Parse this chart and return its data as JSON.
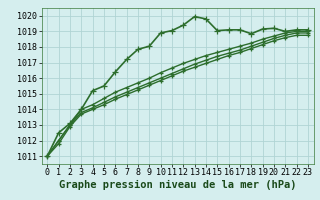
{
  "title": "Graphe pression niveau de la mer (hPa)",
  "background_color": "#d5eeee",
  "grid_color": "#b0d4d4",
  "line_color": "#2d6e2d",
  "marker": "+",
  "xlim": [
    -0.5,
    23.5
  ],
  "ylim": [
    1010.5,
    1020.5
  ],
  "yticks": [
    1011,
    1012,
    1013,
    1014,
    1015,
    1016,
    1017,
    1018,
    1019,
    1020
  ],
  "xticks": [
    0,
    1,
    2,
    3,
    4,
    5,
    6,
    7,
    8,
    9,
    10,
    11,
    12,
    13,
    14,
    15,
    16,
    17,
    18,
    19,
    20,
    21,
    22,
    23
  ],
  "series": [
    [
      1011.0,
      1012.5,
      1013.1,
      1014.0,
      1015.2,
      1015.5,
      1016.4,
      1017.2,
      1017.85,
      1018.05,
      1018.9,
      1019.05,
      1019.4,
      1019.95,
      1019.8,
      1019.05,
      1019.1,
      1019.1,
      1018.85,
      1019.15,
      1019.2,
      1019.0,
      1019.1,
      1019.1
    ],
    [
      1011.0,
      1012.0,
      1013.0,
      1014.0,
      1014.3,
      1014.7,
      1015.1,
      1015.4,
      1015.7,
      1016.0,
      1016.35,
      1016.65,
      1016.95,
      1017.2,
      1017.45,
      1017.65,
      1017.85,
      1018.05,
      1018.25,
      1018.5,
      1018.7,
      1018.9,
      1019.0,
      1019.0
    ],
    [
      1011.0,
      1012.0,
      1013.0,
      1013.8,
      1014.1,
      1014.45,
      1014.8,
      1015.1,
      1015.4,
      1015.7,
      1016.0,
      1016.3,
      1016.6,
      1016.9,
      1017.15,
      1017.4,
      1017.6,
      1017.8,
      1018.05,
      1018.3,
      1018.55,
      1018.75,
      1018.9,
      1018.9
    ],
    [
      1011.0,
      1011.8,
      1012.9,
      1013.7,
      1014.0,
      1014.3,
      1014.65,
      1014.95,
      1015.25,
      1015.55,
      1015.85,
      1016.15,
      1016.45,
      1016.7,
      1016.95,
      1017.2,
      1017.45,
      1017.65,
      1017.9,
      1018.15,
      1018.4,
      1018.6,
      1018.75,
      1018.75
    ]
  ],
  "xlabel_fontsize": 7.5,
  "tick_fontsize": 6
}
